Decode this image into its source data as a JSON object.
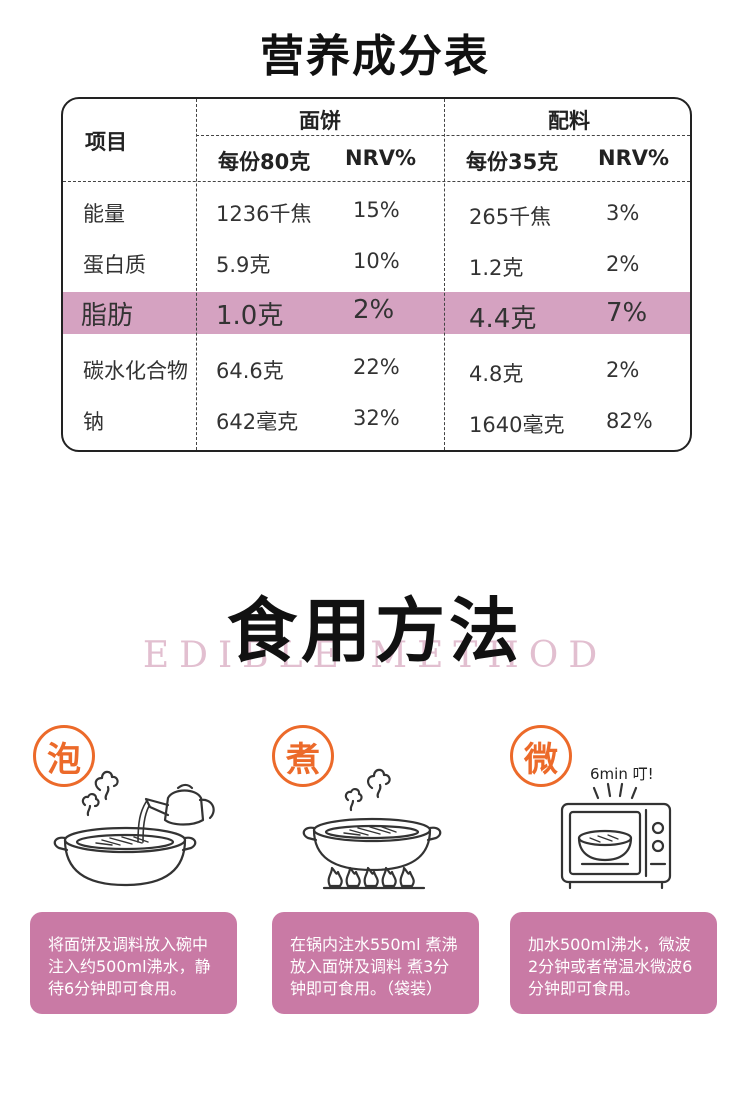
{
  "nutrition": {
    "title": "营养成分表",
    "item_header": "项目",
    "groups": [
      {
        "name": "面饼",
        "per": "每份80克",
        "nrv": "NRV%"
      },
      {
        "name": "配料",
        "per": "每份35克",
        "nrv": "NRV%"
      }
    ],
    "rows": [
      {
        "item": "能量",
        "v1": "1236千焦",
        "n1": "15%",
        "v2": "265千焦",
        "n2": "3%"
      },
      {
        "item": "蛋白质",
        "v1": "5.9克",
        "n1": "10%",
        "v2": "1.2克",
        "n2": "2%"
      },
      {
        "item": "脂肪",
        "v1": "1.0克",
        "n1": "2%",
        "v2": "4.4克",
        "n2": "7%"
      },
      {
        "item": "碳水化合物",
        "v1": "64.6克",
        "n1": "22%",
        "v2": "4.8克",
        "n2": "2%"
      },
      {
        "item": "钠",
        "v1": "642毫克",
        "n1": "32%",
        "v2": "1640毫克",
        "n2": "82%"
      }
    ],
    "highlight_color": "#d5a2c1"
  },
  "usage": {
    "title": "食用方法",
    "subtitle": "EDIBLE METHOD",
    "methods": [
      {
        "badge": "泡",
        "lines": [
          "将面饼及调料放入碗中",
          "注入约500ml沸水，静",
          "待6分钟即可食用。"
        ]
      },
      {
        "badge": "煮",
        "lines": [
          "在锅内注水550ml 煮沸",
          "放入面饼及调料  煮3分",
          "钟即可食用。（袋装）"
        ]
      },
      {
        "badge": "微",
        "lines": [
          "加水500ml沸水，微波",
          "2分钟或者常温水微波6",
          "分钟即可食用。"
        ]
      }
    ],
    "microwave_label": "6min 叮!",
    "badge_color": "#ec6a2a",
    "box_color": "#c97aa5"
  }
}
